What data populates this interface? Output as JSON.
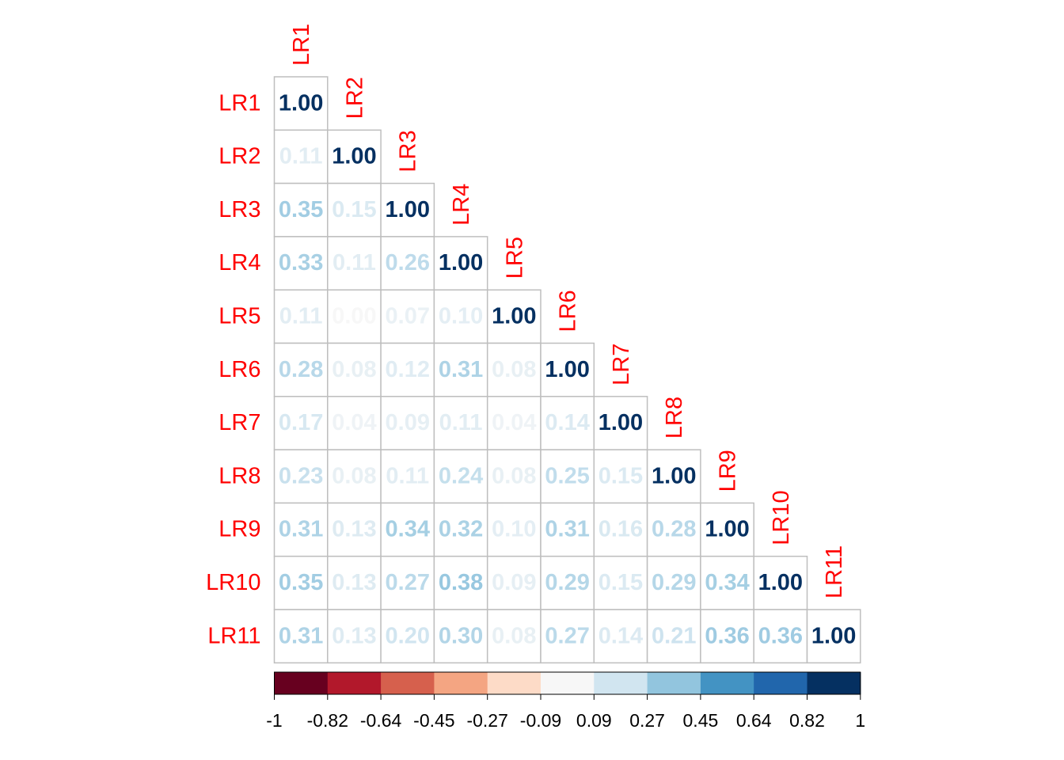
{
  "chart_data": {
    "type": "heatmap",
    "subtype": "correlation-matrix-lower-triangle",
    "variables": [
      "LR1",
      "LR2",
      "LR3",
      "LR4",
      "LR5",
      "LR6",
      "LR7",
      "LR8",
      "LR9",
      "LR10",
      "LR11"
    ],
    "matrix": [
      [
        1.0
      ],
      [
        0.11,
        1.0
      ],
      [
        0.35,
        0.15,
        1.0
      ],
      [
        0.33,
        0.11,
        0.26,
        1.0
      ],
      [
        0.11,
        0.0,
        0.07,
        0.1,
        1.0
      ],
      [
        0.28,
        0.08,
        0.12,
        0.31,
        0.08,
        1.0
      ],
      [
        0.17,
        0.04,
        0.09,
        0.11,
        0.04,
        0.14,
        1.0
      ],
      [
        0.23,
        0.08,
        0.11,
        0.24,
        0.08,
        0.25,
        0.15,
        1.0
      ],
      [
        0.31,
        0.13,
        0.34,
        0.32,
        0.1,
        0.31,
        0.16,
        0.28,
        1.0
      ],
      [
        0.35,
        0.13,
        0.27,
        0.38,
        0.09,
        0.29,
        0.15,
        0.29,
        0.34,
        1.0
      ],
      [
        0.31,
        0.13,
        0.2,
        0.3,
        0.08,
        0.27,
        0.14,
        0.21,
        0.36,
        0.36,
        1.0
      ]
    ],
    "value_format": "2-decimals",
    "color_scale": {
      "range": [
        -1,
        1
      ],
      "colors": [
        "#67001F",
        "#B2182B",
        "#D6604D",
        "#F4A582",
        "#FDDBC7",
        "#F7F7F7",
        "#D1E5F0",
        "#92C5DE",
        "#4393C3",
        "#2166AC",
        "#053061"
      ],
      "tick_labels": [
        "-1",
        "-0.82",
        "-0.64",
        "-0.45",
        "-0.27",
        "-0.09",
        "0.09",
        "0.27",
        "0.45",
        "0.64",
        "0.82",
        "1"
      ]
    },
    "label_color": "#FF0000",
    "grid_color": "#BEBEBE",
    "legend_placement": "bottom"
  }
}
